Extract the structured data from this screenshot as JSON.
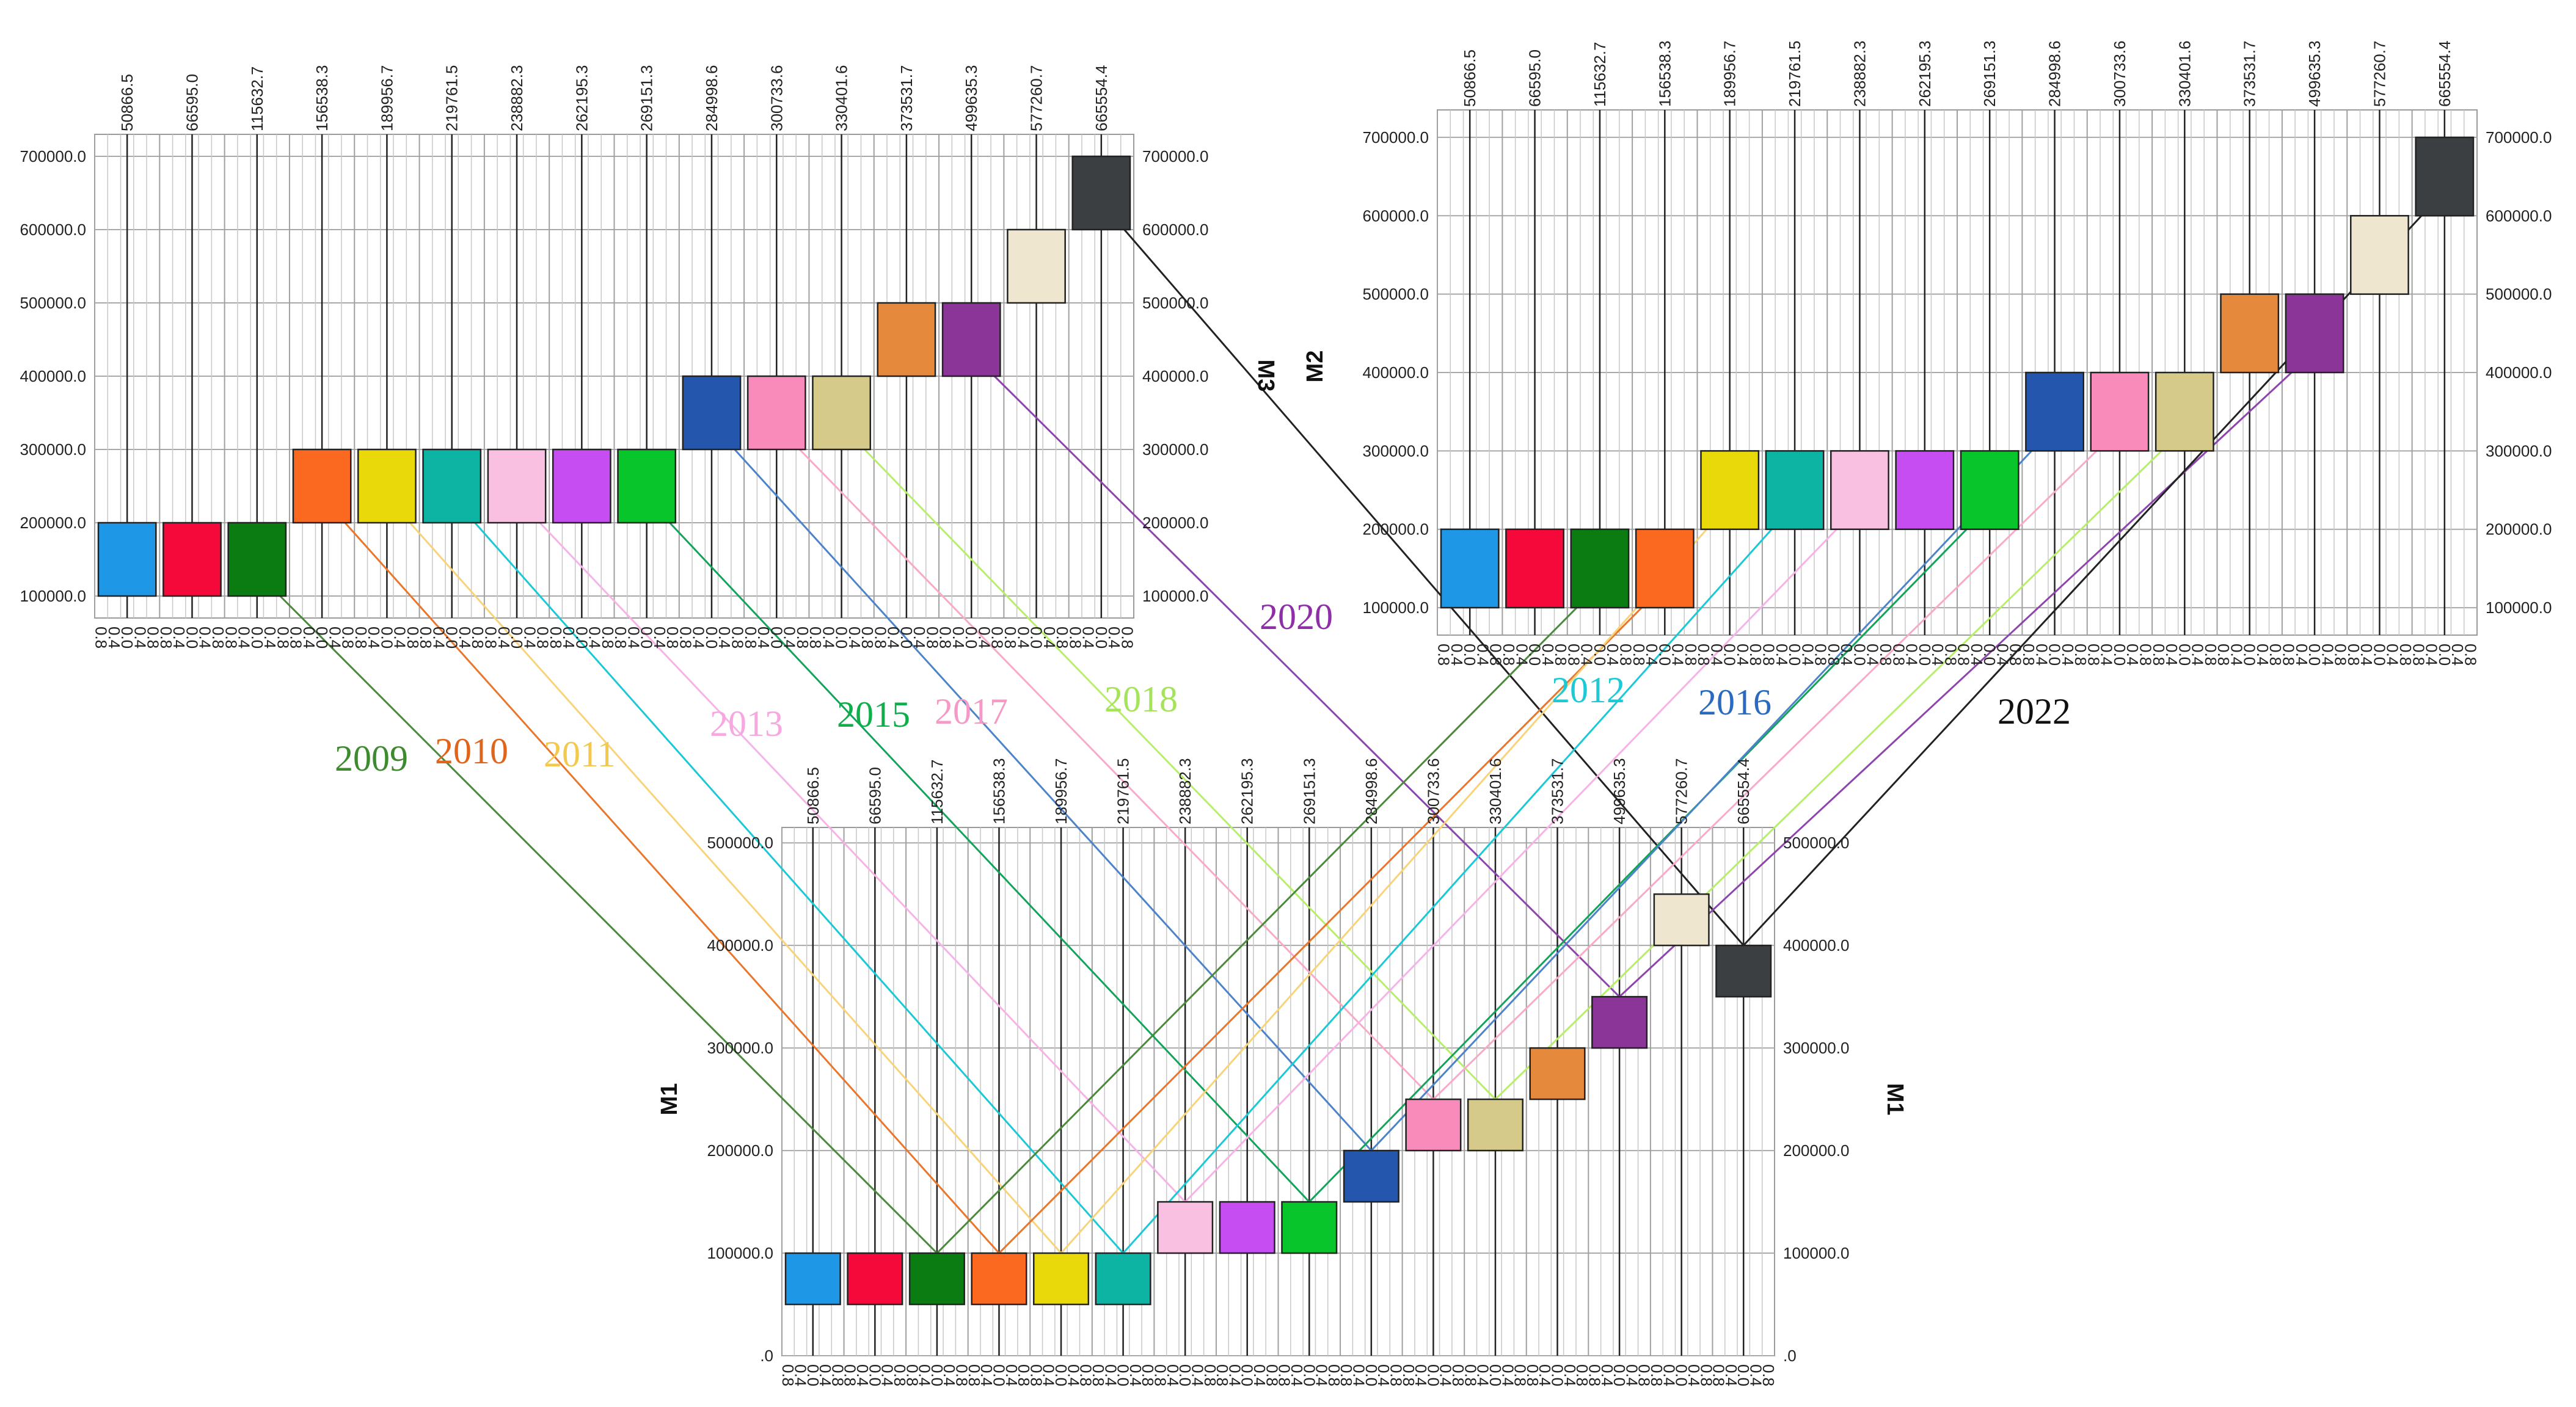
{
  "chart_data": {
    "type": "scatter",
    "description_kind": "three pyramid-style column-panel charts with colored cells connected by year lines",
    "column_labels": [
      "50866.5",
      "66595.0",
      "115632.7",
      "156538.3",
      "189956.7",
      "219761.5",
      "238882.3",
      "262195.3",
      "269151.3",
      "284998.6",
      "300733.6",
      "330401.6",
      "373531.7",
      "499635.3",
      "577260.7",
      "665554.4"
    ],
    "sub_axis_labels": [
      "0.8",
      "0.4",
      "0.0",
      "0.4",
      "0.8"
    ],
    "legend_labels": [
      "2009",
      "2010",
      "2011",
      "2012",
      "2013",
      "2015",
      "2016",
      "2017",
      "2018",
      "2020",
      "2022"
    ],
    "series": [
      {
        "cell": 0,
        "color": "#1e97e6",
        "M3": [
          100000,
          200000
        ],
        "M2": [
          100000,
          200000
        ],
        "M1": [
          50000,
          100000
        ]
      },
      {
        "cell": 1,
        "color": "#f5093a",
        "M3": [
          100000,
          200000
        ],
        "M2": [
          100000,
          200000
        ],
        "M1": [
          50000,
          100000
        ]
      },
      {
        "cell": 2,
        "color": "#0a7c12",
        "name": "2009",
        "M3": [
          100000,
          200000
        ],
        "M2": [
          100000,
          200000
        ],
        "M1": [
          50000,
          100000
        ]
      },
      {
        "cell": 3,
        "color": "#fb6820",
        "name": "2010",
        "M3": [
          200000,
          300000
        ],
        "M2": [
          100000,
          200000
        ],
        "M1": [
          50000,
          100000
        ]
      },
      {
        "cell": 4,
        "color": "#e9d90b",
        "name": "2011",
        "M3": [
          200000,
          300000
        ],
        "M2": [
          200000,
          300000
        ],
        "M1": [
          50000,
          100000
        ]
      },
      {
        "cell": 5,
        "color": "#0db3a3",
        "name": "2012",
        "M3": [
          200000,
          300000
        ],
        "M2": [
          200000,
          300000
        ],
        "M1": [
          50000,
          100000
        ]
      },
      {
        "cell": 6,
        "color": "#fac0e1",
        "name": "2013",
        "M3": [
          200000,
          300000
        ],
        "M2": [
          200000,
          300000
        ],
        "M1": [
          100000,
          150000
        ]
      },
      {
        "cell": 7,
        "color": "#c54df2",
        "M3": [
          200000,
          300000
        ],
        "M2": [
          200000,
          300000
        ],
        "M1": [
          100000,
          150000
        ]
      },
      {
        "cell": 8,
        "color": "#07c52b",
        "name": "2015",
        "M3": [
          200000,
          300000
        ],
        "M2": [
          200000,
          300000
        ],
        "M1": [
          100000,
          150000
        ]
      },
      {
        "cell": 9,
        "color": "#2456ae",
        "name": "2016",
        "M3": [
          300000,
          400000
        ],
        "M2": [
          300000,
          400000
        ],
        "M1": [
          150000,
          200000
        ]
      },
      {
        "cell": 10,
        "color": "#f98bbb",
        "name": "2017",
        "M3": [
          300000,
          400000
        ],
        "M2": [
          300000,
          400000
        ],
        "M1": [
          200000,
          250000
        ]
      },
      {
        "cell": 11,
        "color": "#d5ca8a",
        "name": "2018",
        "M3": [
          300000,
          400000
        ],
        "M2": [
          300000,
          400000
        ],
        "M1": [
          200000,
          250000
        ]
      },
      {
        "cell": 12,
        "color": "#e58a3c",
        "M3": [
          400000,
          500000
        ],
        "M2": [
          400000,
          500000
        ],
        "M1": [
          250000,
          300000
        ]
      },
      {
        "cell": 13,
        "color": "#8a3597",
        "name": "2020",
        "M3": [
          400000,
          500000
        ],
        "M2": [
          400000,
          500000
        ],
        "M1": [
          300000,
          350000
        ]
      },
      {
        "cell": 14,
        "color": "#efe6cf",
        "M3": [
          500000,
          600000
        ],
        "M2": [
          500000,
          600000
        ],
        "M1": [
          400000,
          450000
        ]
      },
      {
        "cell": 15,
        "color": "#3c3f41",
        "name": "2022",
        "M3": [
          600000,
          700000
        ],
        "M2": [
          600000,
          700000
        ],
        "M1": [
          350000,
          400000
        ]
      }
    ],
    "panels": {
      "M3": {
        "title": "M3",
        "yticks": [
          "100000.0",
          "200000.0",
          "300000.0",
          "400000.0",
          "500000.0",
          "600000.0",
          "700000.0"
        ]
      },
      "M2": {
        "title": "M2",
        "yticks": [
          "100000.0",
          "200000.0",
          "300000.0",
          "400000.0",
          "500000.0",
          "600000.0",
          "700000.0"
        ]
      },
      "M1": {
        "title": "M1",
        "yticks": [
          ".0",
          "100000.0",
          "200000.0",
          "300000.0",
          "400000.0",
          "500000.0"
        ]
      }
    },
    "year_lines": [
      {
        "year": "2009",
        "color": "#4b8a3c",
        "from_panel": "M3",
        "from_cell": 2,
        "to_panel": "M1",
        "to_cell": 2
      },
      {
        "year": "2010",
        "color": "#e9762b",
        "from_panel": "M3",
        "from_cell": 3,
        "to_panel": "M1",
        "to_cell": 3
      },
      {
        "year": "2011",
        "color": "#f8d37a",
        "from_panel": "M3",
        "from_cell": 4,
        "to_panel": "M1",
        "to_cell": 4
      },
      {
        "year": "2012",
        "color": "#19c9d6",
        "from_panel": "M3",
        "from_cell": 5,
        "to_panel": "M1",
        "to_cell": 5
      },
      {
        "year": "2013",
        "color": "#f7b3e6",
        "from_panel": "M3",
        "from_cell": 6,
        "to_panel": "M1",
        "to_cell": 6
      },
      {
        "year": "2015",
        "color": "#13a35a",
        "from_panel": "M3",
        "from_cell": 8,
        "to_panel": "M1",
        "to_cell": 8
      },
      {
        "year": "2016",
        "color": "#4d83c9",
        "from_panel": "M3",
        "from_cell": 9,
        "to_panel": "M1",
        "to_cell": 9
      },
      {
        "year": "2017",
        "color": "#f9a9c9",
        "from_panel": "M3",
        "from_cell": 10,
        "to_panel": "M1",
        "to_cell": 10
      },
      {
        "year": "2018",
        "color": "#b7ee6a",
        "from_panel": "M3",
        "from_cell": 11,
        "to_panel": "M1",
        "to_cell": 11
      },
      {
        "year": "2020",
        "color": "#8e44ad",
        "from_panel": "M3",
        "from_cell": 13,
        "to_panel": "M1",
        "to_cell": 13
      },
      {
        "year": "2022",
        "color": "#222222",
        "from_panel": "M3",
        "from_cell": 15,
        "to_panel": "M1",
        "to_cell": 15
      },
      {
        "year": "2009",
        "color": "#4b8a3c",
        "from_panel": "M2",
        "from_cell": 2,
        "to_panel": "M1",
        "to_cell": 2
      },
      {
        "year": "2010",
        "color": "#e9762b",
        "from_panel": "M2",
        "from_cell": 3,
        "to_panel": "M1",
        "to_cell": 3
      },
      {
        "year": "2011",
        "color": "#f8d37a",
        "from_panel": "M2",
        "from_cell": 4,
        "to_panel": "M1",
        "to_cell": 4
      },
      {
        "year": "2012",
        "color": "#19c9d6",
        "from_panel": "M2",
        "from_cell": 5,
        "to_panel": "M1",
        "to_cell": 5
      },
      {
        "year": "2013",
        "color": "#f7b3e6",
        "from_panel": "M2",
        "from_cell": 6,
        "to_panel": "M1",
        "to_cell": 6
      },
      {
        "year": "2015",
        "color": "#13a35a",
        "from_panel": "M2",
        "from_cell": 8,
        "to_panel": "M1",
        "to_cell": 8
      },
      {
        "year": "2016",
        "color": "#4d83c9",
        "from_panel": "M2",
        "from_cell": 9,
        "to_panel": "M1",
        "to_cell": 9
      },
      {
        "year": "2017",
        "color": "#f9a9c9",
        "from_panel": "M2",
        "from_cell": 10,
        "to_panel": "M1",
        "to_cell": 10
      },
      {
        "year": "2018",
        "color": "#b7ee6a",
        "from_panel": "M2",
        "from_cell": 11,
        "to_panel": "M1",
        "to_cell": 11
      },
      {
        "year": "2020",
        "color": "#8e44ad",
        "from_panel": "M2",
        "from_cell": 13,
        "to_panel": "M1",
        "to_cell": 13
      },
      {
        "year": "2022",
        "color": "#222222",
        "from_panel": "M2",
        "from_cell": 15,
        "to_panel": "M1",
        "to_cell": 15
      }
    ],
    "year_labels": [
      {
        "text": "2009",
        "color": "#3e8b2f"
      },
      {
        "text": "2010",
        "color": "#e0641a"
      },
      {
        "text": "2011",
        "color": "#f2c94c"
      },
      {
        "text": "2013",
        "color": "#f7a8e0"
      },
      {
        "text": "2015",
        "color": "#0fae4b"
      },
      {
        "text": "2017",
        "color": "#f59ac6"
      },
      {
        "text": "2018",
        "color": "#a4e35a"
      },
      {
        "text": "2020",
        "color": "#8e2fa8"
      },
      {
        "text": "2012",
        "color": "#1ccad6"
      },
      {
        "text": "2016",
        "color": "#2a6bbf"
      },
      {
        "text": "2022",
        "color": "#111111"
      }
    ],
    "grid": true
  }
}
